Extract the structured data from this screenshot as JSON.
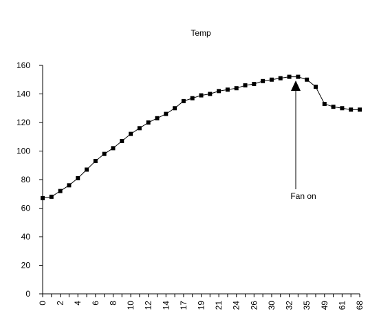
{
  "chart_data": {
    "type": "line",
    "title": "Temp",
    "categories": [
      "0",
      null,
      "2",
      null,
      "4",
      null,
      "6",
      null,
      "8",
      null,
      "10",
      null,
      "12",
      null,
      "14",
      null,
      "17",
      null,
      "19",
      null,
      "21",
      null,
      "24",
      null,
      "26",
      null,
      "30",
      null,
      "32",
      null,
      "35",
      null,
      "49",
      null,
      "61",
      null,
      "68"
    ],
    "series": [
      {
        "name": "Temp",
        "color": "#000000",
        "values": [
          67,
          68,
          72,
          76,
          81,
          87,
          93,
          98,
          102,
          107,
          112,
          116,
          120,
          123,
          126,
          130,
          135,
          137,
          139,
          140,
          142,
          143,
          144,
          146,
          147,
          149,
          150,
          151,
          152,
          152,
          150,
          145,
          133,
          131,
          130,
          129,
          129
        ]
      }
    ],
    "ylim": [
      0,
      160
    ],
    "yticks": [
      0,
      20,
      40,
      60,
      80,
      100,
      120,
      140,
      160
    ],
    "annotation": "Fan on"
  }
}
